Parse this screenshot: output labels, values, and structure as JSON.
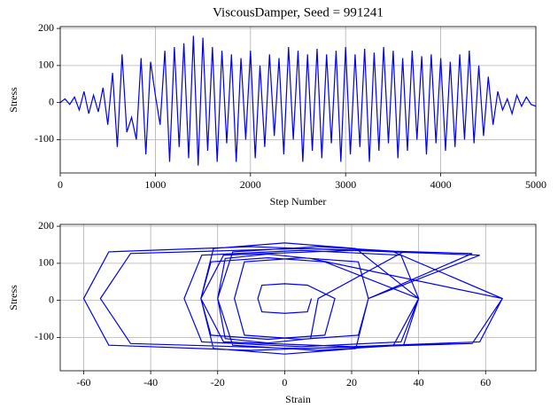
{
  "chart_data": [
    {
      "type": "line",
      "title": "ViscousDamper, Seed = 991241",
      "xlabel": "Step Number",
      "ylabel": "Stress",
      "color": "#0000ee",
      "grid": true,
      "xlim": [
        0,
        5000
      ],
      "xticks": [
        0,
        1000,
        2000,
        3000,
        4000,
        5000
      ],
      "ylim": [
        -190,
        205
      ],
      "yticks": [
        -100,
        0,
        100,
        200
      ],
      "x": [
        0,
        50,
        100,
        150,
        200,
        250,
        300,
        350,
        400,
        450,
        500,
        550,
        600,
        650,
        700,
        750,
        800,
        850,
        900,
        950,
        1000,
        1050,
        1100,
        1150,
        1200,
        1250,
        1300,
        1350,
        1400,
        1450,
        1500,
        1550,
        1600,
        1650,
        1700,
        1750,
        1800,
        1850,
        1900,
        1950,
        2000,
        2050,
        2100,
        2150,
        2200,
        2250,
        2300,
        2350,
        2400,
        2450,
        2500,
        2550,
        2600,
        2650,
        2700,
        2750,
        2800,
        2850,
        2900,
        2950,
        3000,
        3050,
        3100,
        3150,
        3200,
        3250,
        3300,
        3350,
        3400,
        3450,
        3500,
        3550,
        3600,
        3650,
        3700,
        3750,
        3800,
        3850,
        3900,
        3950,
        4000,
        4050,
        4100,
        4150,
        4200,
        4250,
        4300,
        4350,
        4400,
        4450,
        4500,
        4550,
        4600,
        4650,
        4700,
        4750,
        4800,
        4850,
        4900,
        4950,
        5000
      ],
      "values": [
        0,
        10,
        -5,
        15,
        -20,
        30,
        -30,
        20,
        -25,
        40,
        -60,
        80,
        -120,
        130,
        -80,
        -40,
        -100,
        120,
        -140,
        110,
        20,
        -60,
        140,
        -160,
        150,
        -120,
        160,
        -150,
        180,
        -170,
        175,
        -130,
        150,
        -160,
        140,
        -110,
        130,
        -160,
        120,
        -100,
        140,
        -150,
        100,
        -120,
        130,
        -90,
        120,
        -140,
        150,
        -100,
        140,
        -160,
        130,
        -130,
        145,
        -150,
        130,
        -110,
        140,
        -160,
        150,
        -140,
        130,
        -120,
        145,
        -160,
        135,
        -130,
        150,
        -110,
        140,
        -150,
        120,
        -130,
        140,
        -100,
        125,
        -140,
        130,
        -110,
        120,
        -130,
        110,
        -120,
        130,
        -100,
        140,
        -110,
        100,
        -90,
        70,
        -60,
        30,
        -20,
        10,
        -30,
        20,
        -10,
        15,
        -5,
        -10
      ]
    },
    {
      "type": "line",
      "xlabel": "Strain",
      "ylabel": "Stress",
      "color": "#0000ee",
      "grid": true,
      "xlim": [
        -67,
        75
      ],
      "xticks": [
        -60,
        -40,
        -20,
        0,
        20,
        40,
        60
      ],
      "ylim": [
        -190,
        205
      ],
      "yticks": [
        -100,
        0,
        100,
        200
      ],
      "x": [
        8,
        6.8,
        0,
        -6.8,
        -8,
        -6.8,
        0,
        6.8,
        15,
        12,
        -5,
        -22,
        -25,
        -22,
        -5,
        12,
        40,
        34.75,
        5,
        -24.75,
        -30,
        -24.75,
        5,
        34.75,
        40,
        32.5,
        -10,
        -52.5,
        -60,
        -52.5,
        -10,
        32.5,
        65,
        56,
        5,
        -46,
        -55,
        -46,
        5,
        56,
        25,
        21.25,
        0,
        -21.25,
        -25,
        -21.25,
        0,
        21.25,
        40,
        35.5,
        10,
        -15.5,
        -20,
        -15.5,
        10,
        35.5,
        10,
        7.75,
        -5,
        -17.75,
        -20,
        -17.75,
        -5,
        7.75,
        65,
        58.25,
        20,
        -18.25,
        -25,
        -18.25,
        20,
        58.25,
        25,
        22,
        5,
        -12,
        -15,
        -12,
        5,
        22,
        25
      ],
      "values": [
        5,
        -31,
        -35,
        -31,
        5,
        41,
        45,
        41,
        5,
        -94,
        -105,
        -94,
        5,
        104,
        115,
        104,
        5,
        -112,
        -125,
        -112,
        5,
        122,
        135,
        122,
        5,
        -121,
        -135,
        -121,
        5,
        131,
        145,
        131,
        5,
        -116.5,
        -130,
        -116.5,
        5,
        126.5,
        140,
        126.5,
        5,
        -130,
        -145,
        -130,
        5,
        140,
        155,
        140,
        5,
        -121,
        -135,
        -121,
        5,
        131,
        145,
        131,
        5,
        -103,
        -115,
        -103,
        5,
        113,
        125,
        113,
        5,
        -112,
        -125,
        -112,
        5,
        122,
        135,
        122,
        5,
        -94,
        -105,
        -94,
        5,
        104,
        115,
        104,
        5
      ]
    }
  ]
}
